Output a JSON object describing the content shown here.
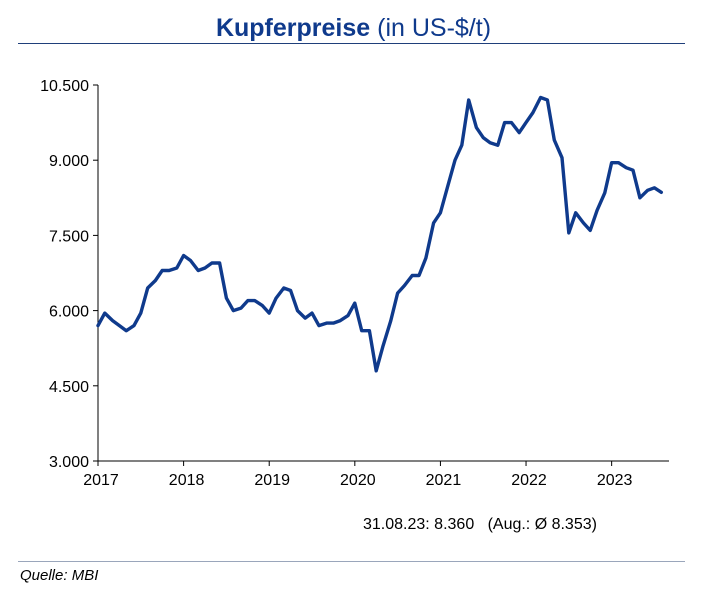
{
  "header": {
    "title_bold": "Kupferpreise",
    "title_rest": "(in US-$/t)"
  },
  "footnote": {
    "latest": "31.08.23: 8.360",
    "average": "(Aug.: Ø 8.353)"
  },
  "source": "Quelle: MBI",
  "colors": {
    "title": "#0f3a8c",
    "line": "#0f3a8c",
    "axis": "#000000"
  },
  "chart_data": {
    "type": "line",
    "title": "Kupferpreise (in US-$/t)",
    "xlabel": "",
    "ylabel": "",
    "grid": false,
    "legend": "none",
    "xlim": [
      2017.0,
      2023.67
    ],
    "ylim": [
      3000,
      10500
    ],
    "y_ticks": [
      3000,
      4500,
      6000,
      7500,
      9000,
      10500
    ],
    "y_tick_labels": [
      "3.000",
      "4.500",
      "6.000",
      "7.500",
      "9.000",
      "10.500"
    ],
    "x_ticks": [
      2017,
      2018,
      2019,
      2020,
      2021,
      2022,
      2023
    ],
    "x_tick_labels": [
      "2017",
      "2018",
      "2019",
      "2020",
      "2021",
      "2022",
      "2023"
    ],
    "series": [
      {
        "values": [
          [
            2017.0,
            5700
          ],
          [
            2017.08,
            5950
          ],
          [
            2017.17,
            5800
          ],
          [
            2017.25,
            5700
          ],
          [
            2017.33,
            5600
          ],
          [
            2017.42,
            5700
          ],
          [
            2017.5,
            5950
          ],
          [
            2017.58,
            6450
          ],
          [
            2017.67,
            6600
          ],
          [
            2017.75,
            6800
          ],
          [
            2017.83,
            6800
          ],
          [
            2017.92,
            6850
          ],
          [
            2018.0,
            7100
          ],
          [
            2018.08,
            7000
          ],
          [
            2018.17,
            6800
          ],
          [
            2018.25,
            6850
          ],
          [
            2018.33,
            6950
          ],
          [
            2018.42,
            6950
          ],
          [
            2018.5,
            6250
          ],
          [
            2018.58,
            6000
          ],
          [
            2018.67,
            6050
          ],
          [
            2018.75,
            6200
          ],
          [
            2018.83,
            6200
          ],
          [
            2018.92,
            6100
          ],
          [
            2019.0,
            5950
          ],
          [
            2019.08,
            6250
          ],
          [
            2019.17,
            6450
          ],
          [
            2019.25,
            6400
          ],
          [
            2019.33,
            6000
          ],
          [
            2019.42,
            5850
          ],
          [
            2019.5,
            5950
          ],
          [
            2019.58,
            5700
          ],
          [
            2019.67,
            5750
          ],
          [
            2019.75,
            5750
          ],
          [
            2019.83,
            5800
          ],
          [
            2019.92,
            5900
          ],
          [
            2020.0,
            6150
          ],
          [
            2020.08,
            5600
          ],
          [
            2020.17,
            5600
          ],
          [
            2020.25,
            4800
          ],
          [
            2020.33,
            5300
          ],
          [
            2020.42,
            5800
          ],
          [
            2020.5,
            6350
          ],
          [
            2020.58,
            6500
          ],
          [
            2020.67,
            6700
          ],
          [
            2020.75,
            6700
          ],
          [
            2020.83,
            7050
          ],
          [
            2020.92,
            7750
          ],
          [
            2021.0,
            7950
          ],
          [
            2021.08,
            8450
          ],
          [
            2021.17,
            9000
          ],
          [
            2021.25,
            9300
          ],
          [
            2021.33,
            10200
          ],
          [
            2021.42,
            9650
          ],
          [
            2021.5,
            9450
          ],
          [
            2021.58,
            9350
          ],
          [
            2021.67,
            9300
          ],
          [
            2021.75,
            9750
          ],
          [
            2021.83,
            9750
          ],
          [
            2021.92,
            9550
          ],
          [
            2022.0,
            9750
          ],
          [
            2022.08,
            9950
          ],
          [
            2022.17,
            10250
          ],
          [
            2022.25,
            10200
          ],
          [
            2022.33,
            9400
          ],
          [
            2022.42,
            9050
          ],
          [
            2022.5,
            7550
          ],
          [
            2022.58,
            7950
          ],
          [
            2022.67,
            7750
          ],
          [
            2022.75,
            7600
          ],
          [
            2022.83,
            8000
          ],
          [
            2022.92,
            8350
          ],
          [
            2023.0,
            8950
          ],
          [
            2023.08,
            8950
          ],
          [
            2023.17,
            8850
          ],
          [
            2023.25,
            8800
          ],
          [
            2023.33,
            8250
          ],
          [
            2023.42,
            8400
          ],
          [
            2023.5,
            8450
          ],
          [
            2023.58,
            8360
          ]
        ]
      }
    ]
  }
}
